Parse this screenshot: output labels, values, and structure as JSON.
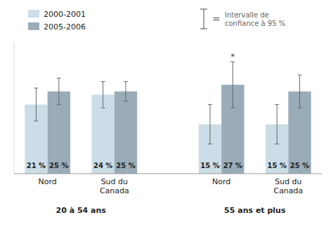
{
  "chart_data": {
    "type": "bar",
    "categories": [
      "Nord",
      "Sud du\nCanada",
      "Nord",
      "Sud du\nCanada"
    ],
    "group_labels": [
      "20 à 54 ans",
      "55 ans et plus"
    ],
    "series": [
      {
        "name": "2000-2001",
        "color": "#ccdde8",
        "values": [
          21,
          24,
          15,
          15
        ],
        "errors": [
          5,
          4,
          6,
          6
        ],
        "value_labels": [
          "21 %",
          "24 %",
          "15 %",
          "15 %"
        ]
      },
      {
        "name": "2005-2006",
        "color": "#9aacb8",
        "values": [
          25,
          25,
          27,
          25
        ],
        "errors": [
          4,
          3,
          7,
          5
        ],
        "value_labels": [
          "25 %",
          "25 %",
          "27 %",
          "25 %"
        ]
      }
    ],
    "ylim": [
      0,
      40
    ],
    "tick_labels": "x",
    "data_labels": true,
    "legend": "top",
    "annotations": [
      {
        "text": "*",
        "series": 1,
        "index": 2
      },
      {
        "symbol": "=",
        "text": "Intervalle de\nconfiance à 95 %"
      }
    ]
  }
}
